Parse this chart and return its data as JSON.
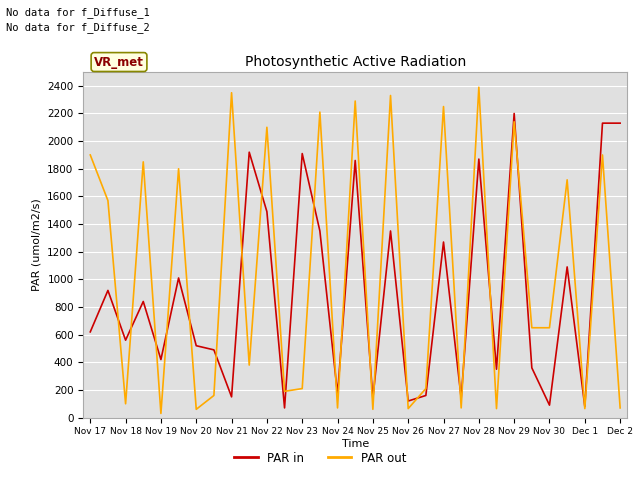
{
  "title": "Photosynthetic Active Radiation",
  "ylabel": "PAR (umol/m2/s)",
  "xlabel": "Time",
  "ylim": [
    0,
    2500
  ],
  "yticks": [
    0,
    200,
    400,
    600,
    800,
    1000,
    1200,
    1400,
    1600,
    1800,
    2000,
    2200,
    2400
  ],
  "annotation_line1": "No data for f_Diffuse_1",
  "annotation_line2": "No data for f_Diffuse_2",
  "legend_label_box": "VR_met",
  "legend_line1": "PAR in",
  "legend_line2": "PAR out",
  "color_par_in": "#cc0000",
  "color_par_out": "#ffaa00",
  "background_color": "#e0e0e0",
  "x_labels": [
    "Nov 17",
    "Nov 18",
    "Nov 19",
    "Nov 20",
    "Nov 21",
    "Nov 22",
    "Nov 23",
    "Nov 24",
    "Nov 25",
    "Nov 26",
    "Nov 27",
    "Nov 28",
    "Nov 29",
    "Nov 30",
    "Dec 1",
    "Dec 2"
  ],
  "par_in_x": [
    0,
    0.5,
    1,
    1.5,
    2,
    2.5,
    3,
    3.5,
    4,
    4.5,
    5,
    5.5,
    6,
    6.5,
    7,
    7.5,
    8,
    8.5,
    9,
    9.5,
    10,
    10.5,
    11,
    11.5,
    12,
    12.5,
    13,
    13.5,
    14,
    14.5,
    15
  ],
  "par_in_y": [
    620,
    920,
    560,
    840,
    420,
    1010,
    520,
    490,
    150,
    1920,
    1490,
    70,
    1910,
    1350,
    170,
    1860,
    140,
    1350,
    120,
    160,
    1270,
    140,
    1870,
    350,
    2200,
    360,
    90,
    1090,
    80,
    2130,
    2130
  ],
  "par_out_x": [
    0,
    0.5,
    1,
    1.5,
    2,
    2.5,
    3,
    3.5,
    4,
    4.5,
    5,
    5.5,
    6,
    6.5,
    7,
    7.5,
    8,
    8.5,
    9,
    9.5,
    10,
    10.5,
    11,
    11.5,
    12,
    12.5,
    13,
    13.5,
    14,
    14.5,
    15
  ],
  "par_out_y": [
    1900,
    1570,
    100,
    1850,
    30,
    1800,
    60,
    160,
    2350,
    380,
    2100,
    190,
    210,
    2210,
    70,
    2290,
    60,
    2330,
    65,
    210,
    2250,
    70,
    2390,
    65,
    2140,
    650,
    650,
    1720,
    65,
    1900,
    70
  ]
}
